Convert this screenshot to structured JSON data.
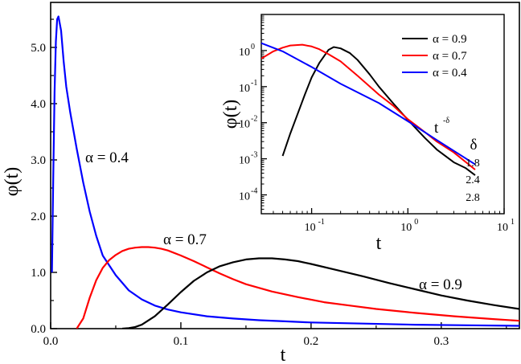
{
  "chart_data": [
    {
      "type": "line",
      "xlabel": "t",
      "ylabel": "φ(t)",
      "xlim": [
        0,
        0.36
      ],
      "ylim": [
        0,
        5.8
      ],
      "x_ticks": [
        0.0,
        0.1,
        0.2,
        0.3
      ],
      "x_tick_labels": [
        "0.0",
        "0.1",
        "0.2",
        "0.3"
      ],
      "y_ticks": [
        0,
        1,
        2,
        3,
        4,
        5
      ],
      "y_tick_labels": [
        "0.0",
        "1.0",
        "2.0",
        "3.0",
        "4.0",
        "5.0"
      ],
      "grid": false,
      "series": [
        {
          "name": "α = 0.4",
          "color": "#0000ff",
          "x": [
            0.001,
            0.002,
            0.003,
            0.004,
            0.005,
            0.006,
            0.008,
            0.01,
            0.012,
            0.015,
            0.02,
            0.025,
            0.03,
            0.035,
            0.04,
            0.05,
            0.06,
            0.07,
            0.08,
            0.09,
            0.1,
            0.12,
            0.14,
            0.16,
            0.18,
            0.2,
            0.24,
            0.28,
            0.32,
            0.36
          ],
          "y": [
            1.0,
            2.7,
            4.2,
            5.1,
            5.5,
            5.55,
            5.3,
            4.75,
            4.3,
            3.85,
            3.2,
            2.6,
            2.08,
            1.65,
            1.3,
            0.95,
            0.68,
            0.52,
            0.41,
            0.34,
            0.29,
            0.22,
            0.18,
            0.15,
            0.13,
            0.11,
            0.09,
            0.07,
            0.06,
            0.05
          ]
        },
        {
          "name": "α = 0.7",
          "color": "#ff0000",
          "x": [
            0.02,
            0.025,
            0.03,
            0.035,
            0.04,
            0.045,
            0.05,
            0.055,
            0.06,
            0.065,
            0.07,
            0.075,
            0.08,
            0.085,
            0.09,
            0.1,
            0.11,
            0.12,
            0.13,
            0.14,
            0.15,
            0.17,
            0.19,
            0.21,
            0.23,
            0.25,
            0.28,
            0.31,
            0.34,
            0.36
          ],
          "y": [
            0.0,
            0.18,
            0.55,
            0.86,
            1.08,
            1.22,
            1.31,
            1.38,
            1.42,
            1.44,
            1.45,
            1.45,
            1.44,
            1.42,
            1.39,
            1.3,
            1.2,
            1.09,
            0.98,
            0.88,
            0.79,
            0.66,
            0.56,
            0.47,
            0.41,
            0.35,
            0.28,
            0.22,
            0.17,
            0.14
          ]
        },
        {
          "name": "α = 0.9",
          "color": "#000000",
          "x": [
            0.055,
            0.06,
            0.065,
            0.07,
            0.08,
            0.09,
            0.1,
            0.11,
            0.12,
            0.13,
            0.14,
            0.15,
            0.16,
            0.17,
            0.18,
            0.19,
            0.2,
            0.22,
            0.24,
            0.26,
            0.28,
            0.3,
            0.32,
            0.34,
            0.36
          ],
          "y": [
            0.0,
            0.01,
            0.03,
            0.07,
            0.22,
            0.43,
            0.65,
            0.85,
            1.0,
            1.11,
            1.18,
            1.23,
            1.25,
            1.25,
            1.23,
            1.2,
            1.15,
            1.04,
            0.93,
            0.81,
            0.7,
            0.59,
            0.5,
            0.42,
            0.35
          ]
        }
      ],
      "annotations": [
        "α = 0.4",
        "α = 0.7",
        "α = 0.9"
      ]
    },
    {
      "type": "line",
      "scale": "log-log",
      "xlabel": "t",
      "ylabel": "φ(t)",
      "xlim": [
        0.03,
        10
      ],
      "ylim": [
        3e-05,
        10
      ],
      "x_ticks": [
        0.1,
        1,
        10
      ],
      "x_tick_base": "10",
      "x_tick_exponents": [
        "-1",
        "0",
        "1"
      ],
      "y_ticks": [
        0.0001,
        0.001,
        0.01,
        0.1,
        1
      ],
      "y_tick_base": "10",
      "y_tick_exponents": [
        "-4",
        "-3",
        "-2",
        "-1",
        "0"
      ],
      "legend_position": "top-right",
      "series": [
        {
          "name": "α = 0.9",
          "color": "#000000",
          "x": [
            0.05,
            0.06,
            0.07,
            0.085,
            0.1,
            0.12,
            0.15,
            0.17,
            0.2,
            0.25,
            0.3,
            0.4,
            0.5,
            0.7,
            1.0,
            1.5,
            2.0,
            3.0,
            4.0,
            5.0
          ],
          "y": [
            0.0012,
            0.005,
            0.015,
            0.06,
            0.18,
            0.45,
            1.05,
            1.25,
            1.15,
            0.85,
            0.55,
            0.22,
            0.1,
            0.035,
            0.012,
            0.0038,
            0.0018,
            0.0008,
            0.00055,
            0.00035
          ]
        },
        {
          "name": "α = 0.7",
          "color": "#ff0000",
          "x": [
            0.03,
            0.04,
            0.05,
            0.06,
            0.08,
            0.1,
            0.12,
            0.15,
            0.2,
            0.3,
            0.5,
            0.7,
            1.0,
            1.5,
            2.0,
            3.0,
            5.0
          ],
          "y": [
            0.6,
            0.95,
            1.2,
            1.38,
            1.45,
            1.3,
            1.09,
            0.79,
            0.5,
            0.2,
            0.06,
            0.03,
            0.0125,
            0.0055,
            0.003,
            0.0015,
            0.0005
          ]
        },
        {
          "name": "α = 0.4",
          "color": "#0000ff",
          "x": [
            0.03,
            0.05,
            0.1,
            0.2,
            0.5,
            1.0,
            2.0,
            5.0
          ],
          "y": [
            1.6,
            0.95,
            0.35,
            0.12,
            0.035,
            0.011,
            0.0033,
            0.0007
          ]
        }
      ],
      "slope_label": {
        "base": "t",
        "exponent": "-δ"
      },
      "slope_header": "δ",
      "slope_values": [
        "1.8",
        "2.4",
        "2.8"
      ]
    }
  ]
}
